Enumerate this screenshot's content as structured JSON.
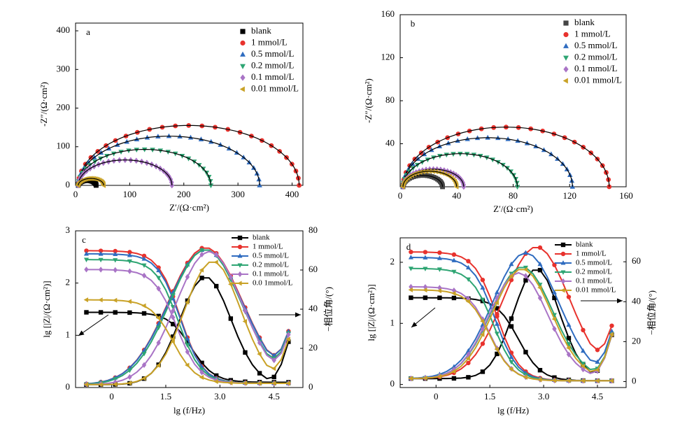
{
  "chart_data": [
    {
      "panel": "a",
      "type": "scatter",
      "xlabel": "Z′/(Ω·cm²)",
      "ylabel": "-Z″/(Ω·cm²)",
      "xlim": [
        0,
        420
      ],
      "ylim": [
        0,
        420
      ],
      "xticks": [
        0,
        100,
        200,
        300,
        400
      ],
      "yticks": [
        0,
        100,
        200,
        300,
        400
      ],
      "legend_position": "top-right",
      "fit_line": true,
      "series": [
        {
          "name": "blank",
          "color": "#000000",
          "marker": "square",
          "r_start": 5,
          "r_end": 38
        },
        {
          "name": "1 mmol/L",
          "color": "#e8322d",
          "marker": "circle",
          "r_start": 5,
          "r_end": 413
        },
        {
          "name": "0.5 mmol/L",
          "color": "#2f6cc0",
          "marker": "triangle-up",
          "r_start": 5,
          "r_end": 340
        },
        {
          "name": "0.2 mmol/L",
          "color": "#2ea573",
          "marker": "triangle-down",
          "r_start": 5,
          "r_end": 250
        },
        {
          "name": "0.1 mmol/L",
          "color": "#a974c6",
          "marker": "diamond",
          "r_start": 5,
          "r_end": 178
        },
        {
          "name": "0.01 mmol/L",
          "color": "#c9a227",
          "marker": "triangle-left",
          "r_start": 5,
          "r_end": 52
        }
      ]
    },
    {
      "panel": "b",
      "type": "scatter",
      "xlabel": "Z′/(Ω·cm²)",
      "ylabel": "-Z″/(Ω·cm²)",
      "xlim": [
        0,
        160
      ],
      "ylim": [
        0,
        160
      ],
      "xticks": [
        0,
        40,
        80,
        120,
        160
      ],
      "yticks": [
        40,
        80,
        120,
        160
      ],
      "legend_position": "top-right",
      "fit_line": true,
      "series": [
        {
          "name": "blank",
          "color": "#444444",
          "marker": "square",
          "r_start": 2,
          "r_end": 30
        },
        {
          "name": "1 mmol/L",
          "color": "#e8322d",
          "marker": "circle",
          "r_start": 2,
          "r_end": 148
        },
        {
          "name": "0.5 mmol/L",
          "color": "#2f6cc0",
          "marker": "triangle-up",
          "r_start": 2,
          "r_end": 122
        },
        {
          "name": "0.2 mmol/L",
          "color": "#2ea573",
          "marker": "triangle-down",
          "r_start": 2,
          "r_end": 83
        },
        {
          "name": "0.1 mmol/L",
          "color": "#a974c6",
          "marker": "diamond",
          "r_start": 2,
          "r_end": 45
        },
        {
          "name": "0.01 mmol/L",
          "color": "#c9a227",
          "marker": "triangle-left",
          "r_start": 2,
          "r_end": 40
        }
      ]
    },
    {
      "panel": "c",
      "type": "line",
      "xlabel": "lg (f/Hz)",
      "ylabel": "lg [|Z|/(Ω·cm²)]",
      "y2label": "−相位角/(°)",
      "xlim": [
        -1,
        5.3
      ],
      "ylim": [
        0,
        3
      ],
      "y2lim": [
        0,
        80
      ],
      "xticks": [
        0,
        1.5,
        3.0,
        4.5
      ],
      "xticklabels": [
        "0",
        "1.5",
        "3.0",
        "4.5"
      ],
      "yticks": [
        0,
        1,
        2,
        3
      ],
      "y2ticks": [
        0,
        20,
        40,
        60,
        80
      ],
      "legend_position": "top-right",
      "series": [
        {
          "name": "blank",
          "color": "#000000",
          "marker": "square",
          "lgz_low": 1.44,
          "lgz_high": 0.1,
          "fc": 2.2,
          "peak": 55,
          "peak_x": 2.6,
          "width": 1.0
        },
        {
          "name": "1 mmol/L",
          "color": "#e8322d",
          "marker": "circle",
          "lgz_low": 2.62,
          "lgz_high": 0.08,
          "fc": 1.9,
          "peak": 70,
          "peak_x": 2.6,
          "width": 1.45
        },
        {
          "name": "0.5 mmol/L",
          "color": "#2f6cc0",
          "marker": "triangle-up",
          "lgz_low": 2.56,
          "lgz_high": 0.08,
          "fc": 1.9,
          "peak": 69,
          "peak_x": 2.6,
          "width": 1.45
        },
        {
          "name": "0.2 mmol/L",
          "color": "#2ea573",
          "marker": "triangle-down",
          "lgz_low": 2.45,
          "lgz_high": 0.08,
          "fc": 1.85,
          "peak": 69,
          "peak_x": 2.6,
          "width": 1.4
        },
        {
          "name": "0.1 mmol/L",
          "color": "#a974c6",
          "marker": "diamond",
          "lgz_low": 2.26,
          "lgz_high": 0.08,
          "fc": 1.8,
          "peak": 68,
          "peak_x": 2.7,
          "width": 1.3
        },
        {
          "name": "0.0 1mmol/L",
          "color": "#c9a227",
          "marker": "triangle-left",
          "lgz_low": 1.68,
          "lgz_high": 0.08,
          "fc": 1.7,
          "peak": 63,
          "peak_x": 2.8,
          "width": 1.1
        }
      ]
    },
    {
      "panel": "d",
      "type": "line",
      "xlabel": "lg (f/Hz)",
      "ylabel": "lg [|Z|/(Ω·cm²)]",
      "y2label": "−相位角/(°)",
      "xlim": [
        -1,
        5.3
      ],
      "ylim": [
        -0.05,
        2.4
      ],
      "y2lim": [
        -3,
        72
      ],
      "xticks": [
        0,
        1.5,
        3.0,
        4.5
      ],
      "xticklabels": [
        "0",
        "1.5",
        "3.0",
        "4.5"
      ],
      "yticks": [
        0,
        1,
        2
      ],
      "y2ticks": [
        0,
        20,
        40,
        60
      ],
      "legend_position": "top-right",
      "series": [
        {
          "name": "blank",
          "color": "#000000",
          "marker": "square",
          "lgz_low": 1.42,
          "lgz_high": 0.06,
          "fc": 2.3,
          "peak": 55,
          "peak_x": 2.8,
          "width": 0.9
        },
        {
          "name": "1 mmol/L",
          "color": "#e8322d",
          "marker": "circle",
          "lgz_low": 2.17,
          "lgz_high": 0.06,
          "fc": 1.7,
          "peak": 66,
          "peak_x": 2.8,
          "width": 1.3
        },
        {
          "name": "0.5 mmol/L",
          "color": "#2f6cc0",
          "marker": "triangle-up",
          "lgz_low": 2.08,
          "lgz_high": 0.06,
          "fc": 1.65,
          "peak": 63,
          "peak_x": 2.5,
          "width": 1.3
        },
        {
          "name": "0.2 mmol/L",
          "color": "#2ea573",
          "marker": "triangle-down",
          "lgz_low": 1.9,
          "lgz_high": 0.06,
          "fc": 1.6,
          "peak": 56,
          "peak_x": 2.4,
          "width": 1.2
        },
        {
          "name": "0.1 mmol/L",
          "color": "#a974c6",
          "marker": "diamond",
          "lgz_low": 1.6,
          "lgz_high": 0.06,
          "fc": 1.5,
          "peak": 53,
          "peak_x": 2.3,
          "width": 1.15
        },
        {
          "name": "0.01 mmol/L",
          "color": "#c9a227",
          "marker": "triangle-left",
          "lgz_low": 1.55,
          "lgz_high": 0.06,
          "fc": 1.5,
          "peak": 55,
          "peak_x": 2.4,
          "width": 1.15
        }
      ]
    }
  ]
}
